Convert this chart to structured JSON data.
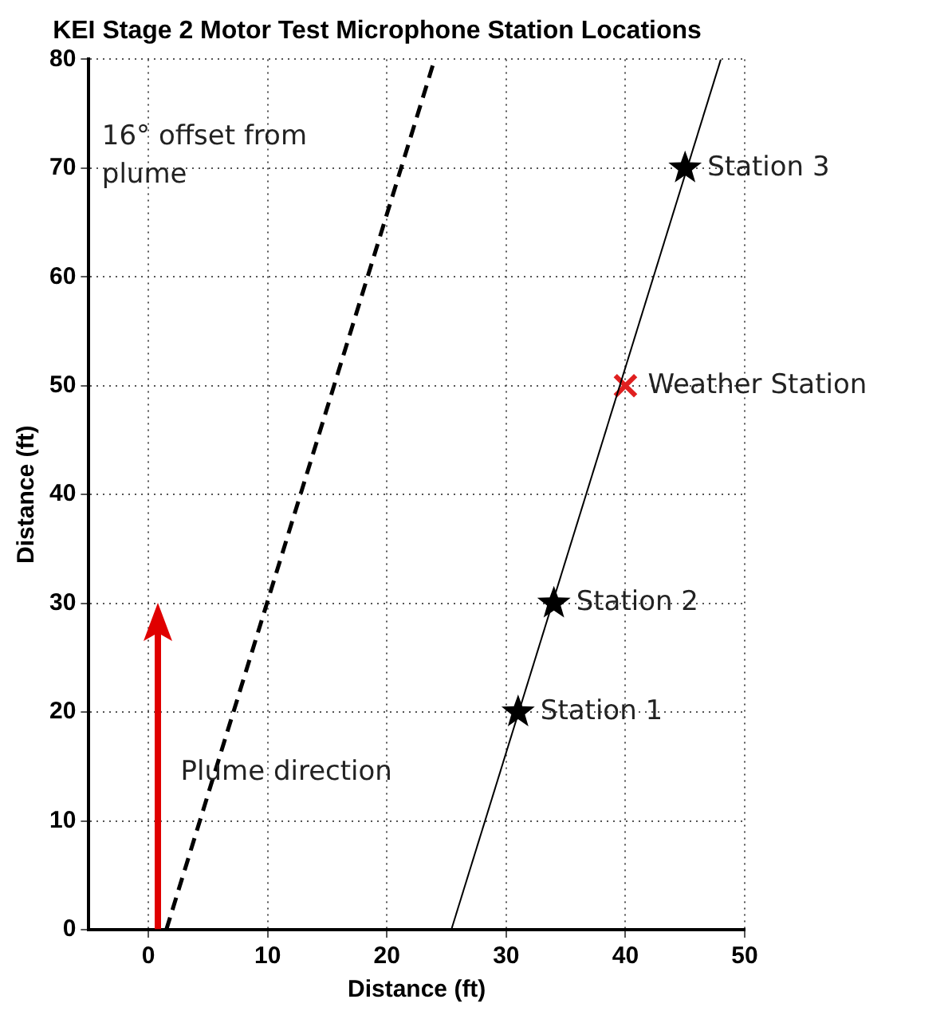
{
  "chart_data": {
    "type": "scatter",
    "title": "KEI Stage 2 Motor Test Microphone Station Locations",
    "xlabel": "Distance (ft)",
    "ylabel": "Distance (ft)",
    "xlim": [
      -5,
      50
    ],
    "xticks": [
      0,
      10,
      20,
      30,
      40,
      50
    ],
    "ylim": [
      0,
      80
    ],
    "yticks": [
      0,
      10,
      20,
      30,
      40,
      50,
      60,
      70,
      80
    ],
    "grid": true,
    "legend": false,
    "series": [
      {
        "type": "line",
        "color": "#000000",
        "x": [
          1.5,
          24
        ],
        "values": [
          0,
          80
        ],
        "line_style": "dashed",
        "marker": "none"
      },
      {
        "type": "line",
        "color": "#000000",
        "x": [
          25.4,
          48
        ],
        "values": [
          0,
          80
        ],
        "line_style": "solid",
        "marker": "none"
      },
      {
        "type": "scatter",
        "name": "Station 1",
        "color": "#000000",
        "x": [
          31
        ],
        "values": [
          20
        ],
        "marker": "star"
      },
      {
        "type": "scatter",
        "name": "Station 2",
        "color": "#000000",
        "x": [
          34
        ],
        "values": [
          30
        ],
        "marker": "star"
      },
      {
        "type": "scatter",
        "name": "Station 3",
        "color": "#000000",
        "x": [
          45
        ],
        "values": [
          70
        ],
        "marker": "star"
      },
      {
        "type": "scatter",
        "name": "Weather Station",
        "color": "#e02020",
        "x": [
          40
        ],
        "values": [
          50
        ],
        "marker": "cross"
      }
    ],
    "annotations": [
      "16° offset from plume",
      "Plume direction"
    ]
  }
}
